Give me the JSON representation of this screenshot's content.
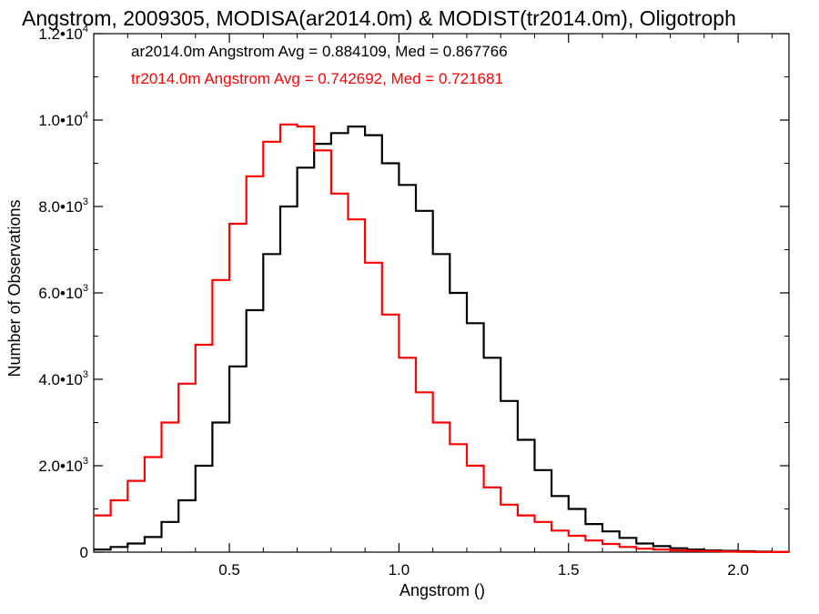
{
  "chart_data": {
    "type": "line",
    "title": "Angstrom, 2009305, MODISA(ar2014.0m) & MODIST(tr2014.0m), Oligotroph",
    "xlabel": "Angstrom ()",
    "ylabel": "Number of Observations",
    "xlim": [
      0.1,
      2.15
    ],
    "ylim": [
      0,
      12000
    ],
    "x_ticks": [
      0.5,
      1.0,
      1.5,
      2.0
    ],
    "x_tick_labels": [
      "0.5",
      "1.0",
      "1.5",
      "2.0"
    ],
    "y_ticks": [
      {
        "value": 0,
        "mantissa": "0",
        "exp": ""
      },
      {
        "value": 2000,
        "mantissa": "2.0•10",
        "exp": "3"
      },
      {
        "value": 4000,
        "mantissa": "4.0•10",
        "exp": "3"
      },
      {
        "value": 6000,
        "mantissa": "6.0•10",
        "exp": "3"
      },
      {
        "value": 8000,
        "mantissa": "8.0•10",
        "exp": "3"
      },
      {
        "value": 10000,
        "mantissa": "1.0•10",
        "exp": "4"
      },
      {
        "value": 12000,
        "mantissa": "1.2•10",
        "exp": "4"
      }
    ],
    "grid": false,
    "legend_position": "top-left",
    "series": [
      {
        "name": "ar2014.0m",
        "stats_text": "ar2014.0m Angstrom Avg = 0.884109, Med = 0.867766",
        "color": "#000000",
        "step": "histogram",
        "x": [
          0.1,
          0.15,
          0.2,
          0.25,
          0.3,
          0.35,
          0.4,
          0.45,
          0.5,
          0.55,
          0.6,
          0.65,
          0.7,
          0.75,
          0.8,
          0.85,
          0.9,
          0.95,
          1.0,
          1.05,
          1.1,
          1.15,
          1.2,
          1.25,
          1.3,
          1.35,
          1.4,
          1.45,
          1.5,
          1.55,
          1.6,
          1.65,
          1.7,
          1.75,
          1.8,
          1.85,
          1.9,
          1.95,
          2.0,
          2.05,
          2.1,
          2.15
        ],
        "y": [
          60,
          120,
          200,
          350,
          700,
          1200,
          2000,
          3000,
          4300,
          5600,
          6900,
          8000,
          8900,
          9450,
          9700,
          9850,
          9650,
          9000,
          8500,
          7900,
          6900,
          6000,
          5300,
          4500,
          3500,
          2600,
          1900,
          1300,
          1000,
          650,
          480,
          330,
          200,
          140,
          90,
          60,
          40,
          30,
          20,
          10,
          5,
          0
        ]
      },
      {
        "name": "tr2014.0m",
        "stats_text": "tr2014.0m Angstrom Avg = 0.742692, Med = 0.721681",
        "color": "#ff0000",
        "step": "histogram",
        "x": [
          0.1,
          0.15,
          0.2,
          0.25,
          0.3,
          0.35,
          0.4,
          0.45,
          0.5,
          0.55,
          0.6,
          0.65,
          0.7,
          0.75,
          0.8,
          0.85,
          0.9,
          0.95,
          1.0,
          1.05,
          1.1,
          1.15,
          1.2,
          1.25,
          1.3,
          1.35,
          1.4,
          1.45,
          1.5,
          1.55,
          1.6,
          1.65,
          1.7,
          1.75,
          1.8,
          1.85,
          1.9,
          1.95,
          2.0,
          2.05,
          2.1,
          2.15
        ],
        "y": [
          850,
          1200,
          1650,
          2200,
          3000,
          3900,
          4800,
          6300,
          7600,
          8700,
          9500,
          9900,
          9850,
          9300,
          8300,
          7700,
          6700,
          5500,
          4500,
          3700,
          3000,
          2500,
          2000,
          1500,
          1100,
          850,
          700,
          500,
          380,
          270,
          190,
          120,
          80,
          60,
          40,
          30,
          20,
          12,
          8,
          5,
          3,
          0
        ]
      }
    ]
  }
}
